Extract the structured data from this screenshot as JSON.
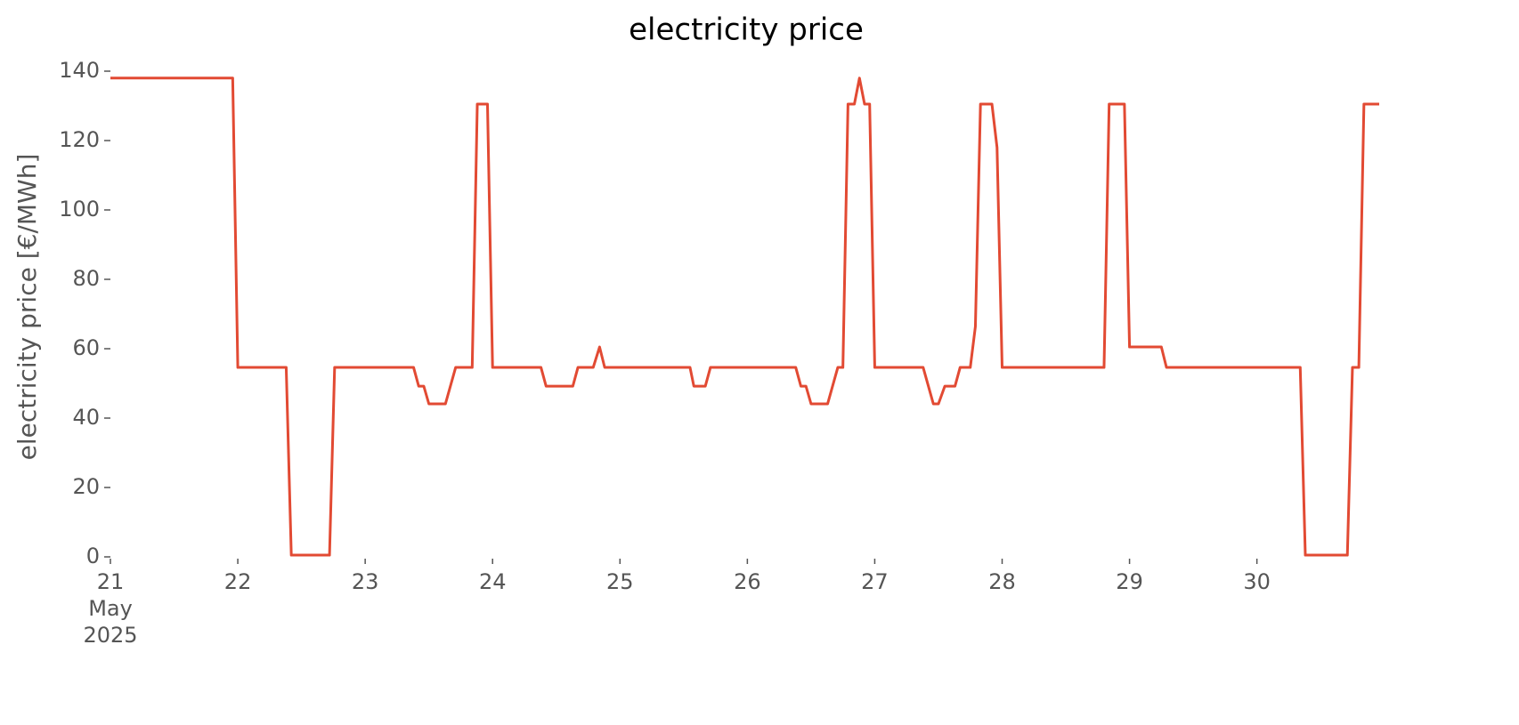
{
  "chart_data": {
    "type": "line",
    "title": "electricity price",
    "ylabel": "electricity price [€/MWh]",
    "x": [
      21.0,
      21.96,
      22.0,
      22.38,
      22.42,
      22.72,
      22.76,
      23.38,
      23.42,
      23.46,
      23.5,
      23.63,
      23.71,
      23.84,
      23.88,
      23.96,
      24.0,
      24.38,
      24.42,
      24.63,
      24.67,
      24.79,
      24.84,
      24.88,
      25.55,
      25.58,
      25.67,
      25.71,
      26.38,
      26.42,
      26.46,
      26.5,
      26.63,
      26.71,
      26.75,
      26.79,
      26.84,
      26.88,
      26.92,
      26.96,
      27.0,
      27.38,
      27.46,
      27.5,
      27.55,
      27.63,
      27.67,
      27.75,
      27.79,
      27.83,
      27.92,
      27.96,
      28.0,
      28.8,
      28.84,
      28.96,
      29.0,
      29.25,
      29.29,
      30.34,
      30.38,
      30.71,
      30.75,
      30.8,
      30.84,
      30.96
    ],
    "series": [
      {
        "name": "electricity price",
        "color": "#e24a33",
        "values": [
          138,
          138,
          54.6,
          54.6,
          0.5,
          0.5,
          54.6,
          54.6,
          49.2,
          49.2,
          44.1,
          44.1,
          54.6,
          54.6,
          130.5,
          130.5,
          54.6,
          54.6,
          49.2,
          49.2,
          54.6,
          54.6,
          60.5,
          54.6,
          54.6,
          49.2,
          49.2,
          54.6,
          54.6,
          49.2,
          49.2,
          44.1,
          44.1,
          54.6,
          54.6,
          130.5,
          130.5,
          138,
          130.5,
          130.5,
          54.6,
          54.6,
          44.1,
          44.1,
          49.2,
          49.2,
          54.6,
          54.6,
          66.4,
          130.5,
          130.5,
          118,
          54.6,
          54.6,
          130.5,
          130.5,
          60.5,
          60.5,
          54.6,
          54.6,
          0.5,
          0.5,
          54.6,
          54.6,
          130.5,
          130.5
        ]
      }
    ],
    "xlim": [
      21,
      30.96
    ],
    "xticks": [
      {
        "value": 21,
        "label": "21 May 2025"
      },
      22,
      23,
      24,
      25,
      26,
      27,
      28,
      29,
      30
    ],
    "ylim": [
      0,
      140
    ],
    "yticks": [
      0,
      20,
      40,
      60,
      80,
      100,
      120,
      140
    ],
    "grid": false
  }
}
